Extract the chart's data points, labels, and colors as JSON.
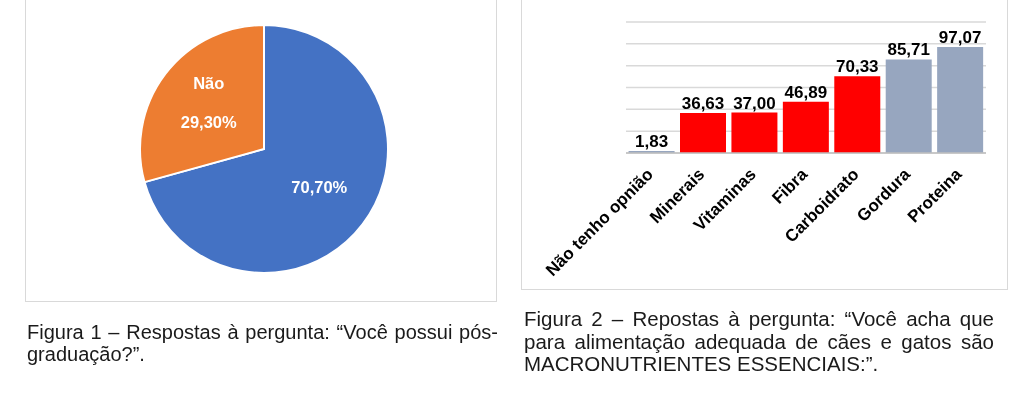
{
  "chart_data": [
    {
      "type": "pie",
      "categories": [
        null,
        "Não"
      ],
      "values": [
        70.7,
        29.3
      ],
      "colors": [
        "#4472c4",
        "#ed7d31"
      ],
      "value_labels": [
        "70,70%",
        "29,30%"
      ],
      "annotations": [
        "Figura 1 – Respostas à pergunta: “Você possui pós-graduação?”."
      ]
    },
    {
      "type": "bar",
      "categories": [
        "Não tenho opnião",
        "Minerais",
        "Vitaminas",
        "Fibra",
        "Carboidrato",
        "Gordura",
        "Proteina"
      ],
      "values": [
        1.83,
        36.63,
        37.0,
        46.89,
        70.33,
        85.71,
        97.07
      ],
      "colors": [
        "#97a6bf",
        "#ff0000",
        "#ff0000",
        "#ff0000",
        "#ff0000",
        "#97a6bf",
        "#97a6bf"
      ],
      "value_labels": [
        "1,83",
        "36,63",
        "37,00",
        "46,89",
        "70,33",
        "85,71",
        "97,07"
      ],
      "ylim": [
        0,
        120
      ],
      "yticks": [
        {
          "value": 0,
          "label": null
        },
        {
          "value": 20,
          "label": null
        },
        {
          "value": 40,
          "label": null
        },
        {
          "value": 60,
          "label": null
        },
        {
          "value": 80,
          "label": null
        },
        {
          "value": 100,
          "label": null
        },
        {
          "value": 120,
          "label": null
        }
      ],
      "grid": "y",
      "tick_labels": "x",
      "annotations": [
        "Figura 2 – Repostas à pergunta: “Você acha que para alimentação adequada de cães e gatos são MACRONUTRIENTES ESSENCIAIS:”."
      ]
    }
  ]
}
